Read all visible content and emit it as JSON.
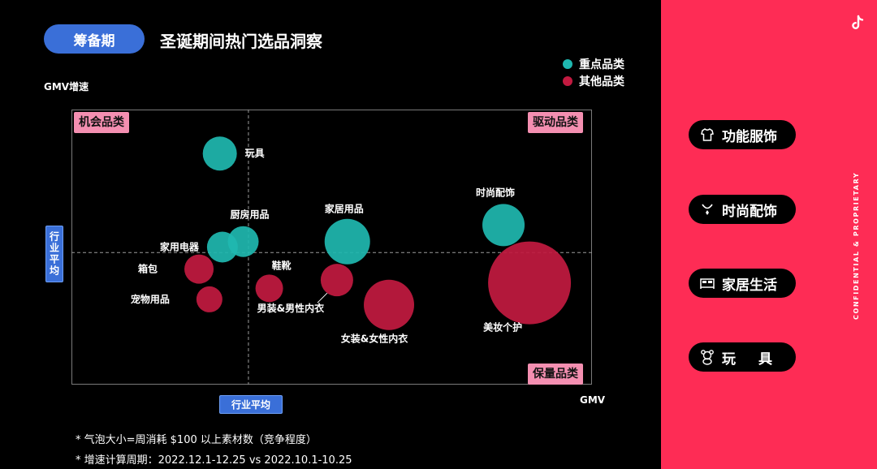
{
  "header": {
    "badge": "筹备期",
    "title": "圣诞期间热门选品洞察"
  },
  "legend": [
    {
      "label": "重点品类",
      "color": "#1fb8b0"
    },
    {
      "label": "其他品类",
      "color": "#c21a40"
    }
  ],
  "quadrants": {
    "top_left": "机会品类",
    "top_right": "驱动品类",
    "bottom_right": "保量品类"
  },
  "averages": {
    "x_label": "行业平均",
    "y_label": "行业平均"
  },
  "notes": [
    "* 气泡大小=周消耗 $100 以上素材数（竞争程度）",
    "* 增速计算周期：2022.12.1-12.25 vs 2022.10.1-10.25"
  ],
  "sidebar": {
    "buttons": [
      {
        "label": "功能服饰",
        "icon": "shirt-icon"
      },
      {
        "label": "时尚配饰",
        "icon": "necklace-icon"
      },
      {
        "label": "家居生活",
        "icon": "bed-icon"
      },
      {
        "label": "玩具",
        "icon": "teddy-bear-icon"
      }
    ],
    "confidential": "CONFIDENTIAL & PROPRIETARY",
    "logo": "tiktok-icon"
  },
  "chart_data": {
    "type": "scatter",
    "xlabel": "GMV",
    "ylabel": "GMV增速",
    "xlim": [
      0,
      100
    ],
    "ylim": [
      0,
      100
    ],
    "avg_x": 34,
    "avg_y": 48,
    "size_meaning": "气泡大小=周消耗 $100 以上素材数（竞争程度）",
    "series": [
      {
        "name": "重点品类",
        "color": "#1fb8b0",
        "points": [
          {
            "label": "玩具",
            "x": 28.5,
            "y": 84,
            "size": 21
          },
          {
            "label": "家用电器",
            "x": 29.0,
            "y": 50,
            "size": 19
          },
          {
            "label": "厨房用品",
            "x": 33.0,
            "y": 52,
            "size": 19
          },
          {
            "label": "家居用品",
            "x": 53.0,
            "y": 52,
            "size": 28
          },
          {
            "label": "时尚配饰",
            "x": 83.0,
            "y": 58,
            "size": 26
          }
        ]
      },
      {
        "name": "其他品类",
        "color": "#c21a40",
        "points": [
          {
            "label": "箱包",
            "x": 24.5,
            "y": 42,
            "size": 18
          },
          {
            "label": "宠物用品",
            "x": 26.5,
            "y": 31,
            "size": 16
          },
          {
            "label": "鞋靴",
            "x": 38.0,
            "y": 35,
            "size": 17
          },
          {
            "label": "男装&男性内衣",
            "x": 51.0,
            "y": 38,
            "size": 20
          },
          {
            "label": "女装&女性内衣",
            "x": 61.0,
            "y": 29,
            "size": 31
          },
          {
            "label": "美妆个护",
            "x": 88.0,
            "y": 37,
            "size": 51
          }
        ]
      }
    ]
  }
}
